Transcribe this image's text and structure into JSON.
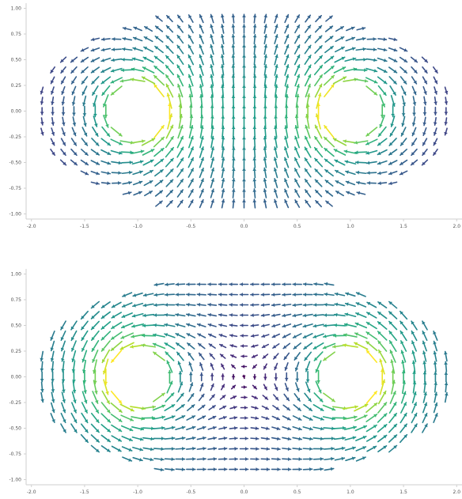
{
  "chart_data": [
    {
      "type": "quiver",
      "title": "",
      "xlabel": "",
      "ylabel": "",
      "xlim": [
        -2.05,
        2.05
      ],
      "ylim": [
        -1.05,
        1.05
      ],
      "xticks": [
        "-2.0",
        "-1.5",
        "-1.0",
        "-0.5",
        "0.0",
        "0.5",
        "1.0",
        "1.5",
        "2.0"
      ],
      "yticks": [
        "1.00",
        "0.75",
        "0.50",
        "0.25",
        "0.00",
        "-0.25",
        "-0.50",
        "-0.75",
        "-1.00"
      ],
      "domain": {
        "shape": "ellipse",
        "a": 2.0,
        "b": 1.0
      },
      "vortices": [
        {
          "x": -1.0,
          "y": 0.0,
          "circulation": "counterclockwise",
          "core_radius": 0.28
        },
        {
          "x": 1.0,
          "y": 0.0,
          "circulation": "clockwise",
          "core_radius": 0.28
        }
      ],
      "colormap": "viridis",
      "color_by": "magnitude",
      "grid": false,
      "legend": false
    },
    {
      "type": "quiver",
      "title": "",
      "xlabel": "",
      "ylabel": "",
      "xlim": [
        -2.05,
        2.05
      ],
      "ylim": [
        -1.05,
        1.05
      ],
      "xticks": [
        "-2.0",
        "-1.5",
        "-1.0",
        "-0.5",
        "0.0",
        "0.5",
        "1.0",
        "1.5",
        "2.0"
      ],
      "yticks": [
        "1.00",
        "0.75",
        "0.50",
        "0.25",
        "0.00",
        "-0.25",
        "-0.50",
        "-0.75",
        "-1.00"
      ],
      "domain": {
        "shape": "ellipse",
        "a": 2.0,
        "b": 1.0
      },
      "vortices": [
        {
          "x": -1.0,
          "y": 0.0,
          "circulation": "counterclockwise",
          "core_radius": 0.28
        },
        {
          "x": 1.0,
          "y": 0.0,
          "circulation": "counterclockwise",
          "core_radius": 0.28
        }
      ],
      "colormap": "viridis",
      "color_by": "magnitude",
      "grid": false,
      "legend": false
    }
  ]
}
